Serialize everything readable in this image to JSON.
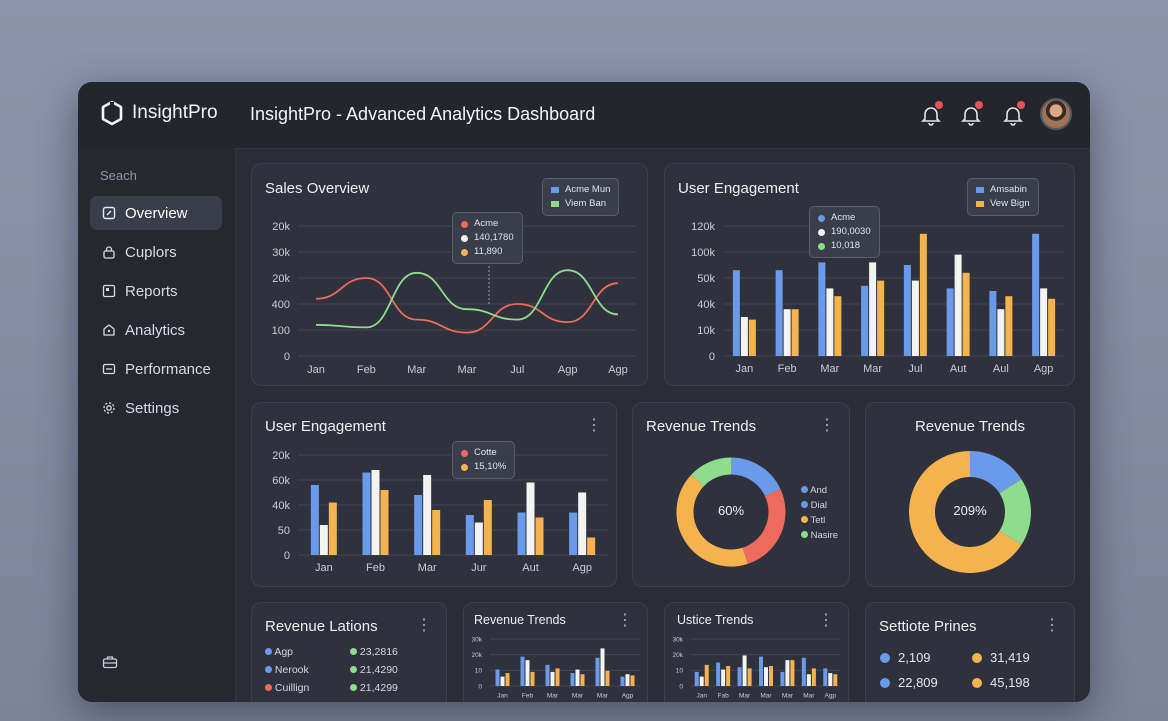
{
  "app": {
    "logo_text": "InsightPro",
    "title": "InsightPro - Advanced Analytics Dashboard"
  },
  "colors": {
    "blue": "#6a9bea",
    "green": "#8fdc8e",
    "red": "#ec6b5e",
    "orange": "#f4b34f",
    "white": "#f3f3f1"
  },
  "sidebar": {
    "search_label": "Seach",
    "items": [
      {
        "label": "Overview",
        "icon": "overview-icon"
      },
      {
        "label": "Cuplors",
        "icon": "lock-icon"
      },
      {
        "label": "Reports",
        "icon": "reports-icon"
      },
      {
        "label": "Analytics",
        "icon": "analytics-icon"
      },
      {
        "label": "Performance",
        "icon": "performance-icon"
      },
      {
        "label": "Settings",
        "icon": "gear-icon"
      }
    ]
  },
  "sales_overview": {
    "title": "Sales Overview",
    "legend": [
      "Acme Mun",
      "Viem Ban"
    ],
    "tooltip": [
      "Acme",
      "140,1780",
      "11,890"
    ]
  },
  "user_engagement_top": {
    "title": "User Engagement",
    "legend": [
      "Amsabin",
      "Vew Bign"
    ],
    "tooltip": [
      "Acme",
      "190,0030",
      "10,018"
    ]
  },
  "user_engagement_mid": {
    "title": "User Engagement",
    "tooltip": [
      "Cotte",
      "15,10%"
    ]
  },
  "revenue_trends_donut1": {
    "title": "Revenue Trends",
    "center": "60%",
    "legend": [
      "And",
      "Dial",
      "Tetl",
      "Nasire"
    ]
  },
  "revenue_trends_donut2": {
    "title": "Revenue Trends",
    "center": "209%"
  },
  "revenue_lations": {
    "title": "Revenue Lations",
    "rows": [
      {
        "label": "Agp",
        "value": "23,2816"
      },
      {
        "label": "Nerook",
        "value": "21,4290"
      },
      {
        "label": "Cuillign",
        "value": "21,4299"
      }
    ]
  },
  "revenue_trends_small": {
    "title": "Revenue Trends"
  },
  "ustice_trends": {
    "title": "Ustice Trends"
  },
  "settiote_prines": {
    "title": "Settiote Prines",
    "stats": [
      "2,109",
      "31,419",
      "22,809",
      "45,198"
    ]
  },
  "chart_data": [
    {
      "id": "sales-overview",
      "type": "line",
      "categories": [
        "Jan",
        "Feb",
        "Mar",
        "Mar",
        "Jul",
        "Agp",
        "Agp"
      ],
      "y_tick_labels": [
        "0",
        "100",
        "400",
        "20k",
        "30k",
        "20k"
      ],
      "ylim": [
        0,
        5
      ],
      "series": [
        {
          "color": "red",
          "values": [
            2.2,
            3.0,
            1.4,
            0.9,
            2.0,
            1.3,
            2.8
          ]
        },
        {
          "color": "green",
          "values": [
            1.2,
            1.1,
            3.2,
            1.8,
            1.4,
            3.3,
            1.6
          ]
        }
      ]
    },
    {
      "id": "user-engagement-top",
      "type": "bar",
      "categories": [
        "Jan",
        "Feb",
        "Mar",
        "Mar",
        "Jul",
        "Aut",
        "Aul",
        "Agp"
      ],
      "y_tick_labels": [
        "0",
        "10k",
        "40k",
        "50k",
        "100k",
        "120k"
      ],
      "ylim": [
        0,
        5
      ],
      "series": [
        {
          "color": "blue",
          "values": [
            3.3,
            3.3,
            3.6,
            2.7,
            3.5,
            2.6,
            2.5,
            4.7
          ]
        },
        {
          "color": "white",
          "values": [
            1.5,
            1.8,
            2.6,
            3.6,
            2.9,
            3.9,
            1.8,
            2.6
          ]
        },
        {
          "color": "orange",
          "values": [
            1.4,
            1.8,
            2.3,
            2.9,
            4.7,
            3.2,
            2.3,
            2.2
          ]
        }
      ]
    },
    {
      "id": "user-engagement-mid",
      "type": "bar",
      "categories": [
        "Jan",
        "Feb",
        "Mar",
        "Jur",
        "Aut",
        "Agp"
      ],
      "y_tick_labels": [
        "0",
        "50",
        "40k",
        "60k",
        "20k"
      ],
      "ylim": [
        0,
        4
      ],
      "series": [
        {
          "color": "blue",
          "values": [
            2.8,
            3.3,
            2.4,
            1.6,
            1.7,
            1.7
          ]
        },
        {
          "color": "white",
          "values": [
            1.2,
            3.4,
            3.2,
            1.3,
            2.9,
            2.5
          ]
        },
        {
          "color": "orange",
          "values": [
            2.1,
            2.6,
            1.8,
            2.2,
            1.5,
            0.7
          ]
        }
      ]
    },
    {
      "id": "revenue-trends-donut1",
      "type": "pie",
      "slices": [
        {
          "color": "blue",
          "value": 18
        },
        {
          "color": "red",
          "value": 27
        },
        {
          "color": "orange",
          "value": 42
        },
        {
          "color": "green",
          "value": 13
        }
      ]
    },
    {
      "id": "revenue-trends-donut2",
      "type": "pie",
      "slices": [
        {
          "color": "blue",
          "value": 16
        },
        {
          "color": "green",
          "value": 18
        },
        {
          "color": "orange",
          "value": 66
        }
      ]
    },
    {
      "id": "revenue-trends-small",
      "type": "bar",
      "categories": [
        "Jan",
        "Feb",
        "Mar",
        "Mar",
        "Mar",
        "Agp"
      ],
      "y_tick_labels": [
        "0",
        "10",
        "20k",
        "30k"
      ],
      "ylim": [
        0,
        4
      ],
      "series": [
        {
          "color": "blue",
          "values": [
            1.4,
            2.5,
            1.8,
            1.1,
            2.4,
            0.8
          ]
        },
        {
          "color": "white",
          "values": [
            0.8,
            2.2,
            1.2,
            1.4,
            3.2,
            1.0
          ]
        },
        {
          "color": "orange",
          "values": [
            1.1,
            1.2,
            1.5,
            1.0,
            1.3,
            0.9
          ]
        }
      ]
    },
    {
      "id": "ustice-trends",
      "type": "bar",
      "categories": [
        "Jan",
        "Fab",
        "Mar",
        "Mar",
        "Mar",
        "Mar",
        "Agp"
      ],
      "y_tick_labels": [
        "0",
        "10",
        "20k",
        "30k"
      ],
      "ylim": [
        0,
        4
      ],
      "series": [
        {
          "color": "blue",
          "values": [
            1.2,
            2.0,
            1.6,
            2.5,
            1.2,
            2.4,
            1.5
          ]
        },
        {
          "color": "white",
          "values": [
            0.8,
            1.4,
            2.6,
            1.6,
            2.2,
            1.0,
            1.1
          ]
        },
        {
          "color": "orange",
          "values": [
            1.8,
            1.7,
            1.5,
            1.7,
            2.2,
            1.5,
            1.0
          ]
        }
      ]
    }
  ]
}
